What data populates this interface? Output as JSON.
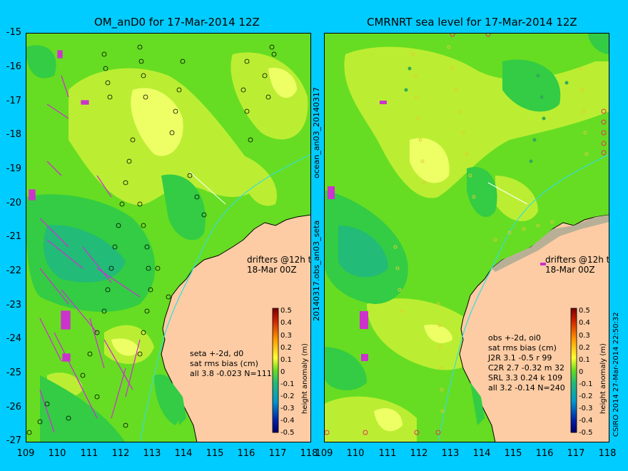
{
  "left": {
    "title": "OM_anD0 for 17-Mar-2014 12Z",
    "drifters_note": [
      "drifters @12h to",
      "18-Mar 00Z"
    ],
    "stats": [
      "seta +-2d, d0",
      "sat rms bias (cm)",
      "all 3.8 -0.023 N=111"
    ],
    "side_label": "ocean_an03_20140317"
  },
  "right": {
    "title": "CMRNRT sea level  for 17-Mar-2014 12Z",
    "drifters_note": [
      "drifters @12h to",
      "18-Mar 00Z"
    ],
    "stats": [
      "obs +-2d, oi0",
      "sat rms bias (cm)",
      "J2R   3.1  -0.5  r 99",
      "C2R   2.7  -0.32  m 32",
      "SRL   3.3  0.24  k 109",
      "all   3.2  -0.14  N=240"
    ],
    "side_label": "CSIRO 2014   27-Mar-2014 22:50:32"
  },
  "middle_label": "20140317.obs_an03_seta",
  "axes": {
    "y_ticks": [
      "-15",
      "-16",
      "-17",
      "-18",
      "-19",
      "-20",
      "-21",
      "-22",
      "-23",
      "-24",
      "-25",
      "-26",
      "-27"
    ],
    "x_ticks": [
      "109",
      "110",
      "111",
      "112",
      "113",
      "114",
      "115",
      "116",
      "117",
      "118"
    ]
  },
  "colorbar": {
    "label": "height anomaly (m)",
    "ticks": [
      "0.5",
      "0.4",
      "0.3",
      "0.2",
      "0.1",
      "0",
      "-0.1",
      "-0.2",
      "-0.3",
      "-0.4",
      "-0.5"
    ]
  },
  "colors": {
    "background": "#00ccff",
    "land": "#fdcca4",
    "sea_base": "#66dd22",
    "drifter": "#cc33cc"
  }
}
